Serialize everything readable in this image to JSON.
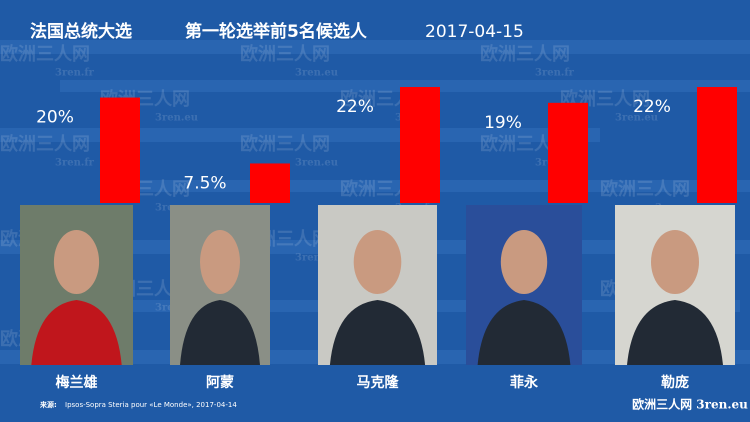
{
  "chart_data": {
    "type": "bar",
    "title": "法国总统大选",
    "subtitle": "第一轮选举前5名候选人",
    "date": "2017-04-15",
    "categories": [
      "梅兰雄",
      "阿蒙",
      "马克隆",
      "菲永",
      "勒庞"
    ],
    "values": [
      20,
      7.5,
      22,
      19,
      22
    ],
    "value_labels": [
      "20%",
      "7.5%",
      "22%",
      "19%",
      "22%"
    ],
    "color": "#ff0000",
    "source_label": "来源:",
    "source": "Ipsos-Sopra Steria pour «Le Monde», 2017-04-14",
    "credit": "欧洲三人网 3ren.eu",
    "watermark": "欧洲三人网",
    "watermark_fr": "3ren.fr",
    "watermark_eu": "3ren.eu"
  }
}
